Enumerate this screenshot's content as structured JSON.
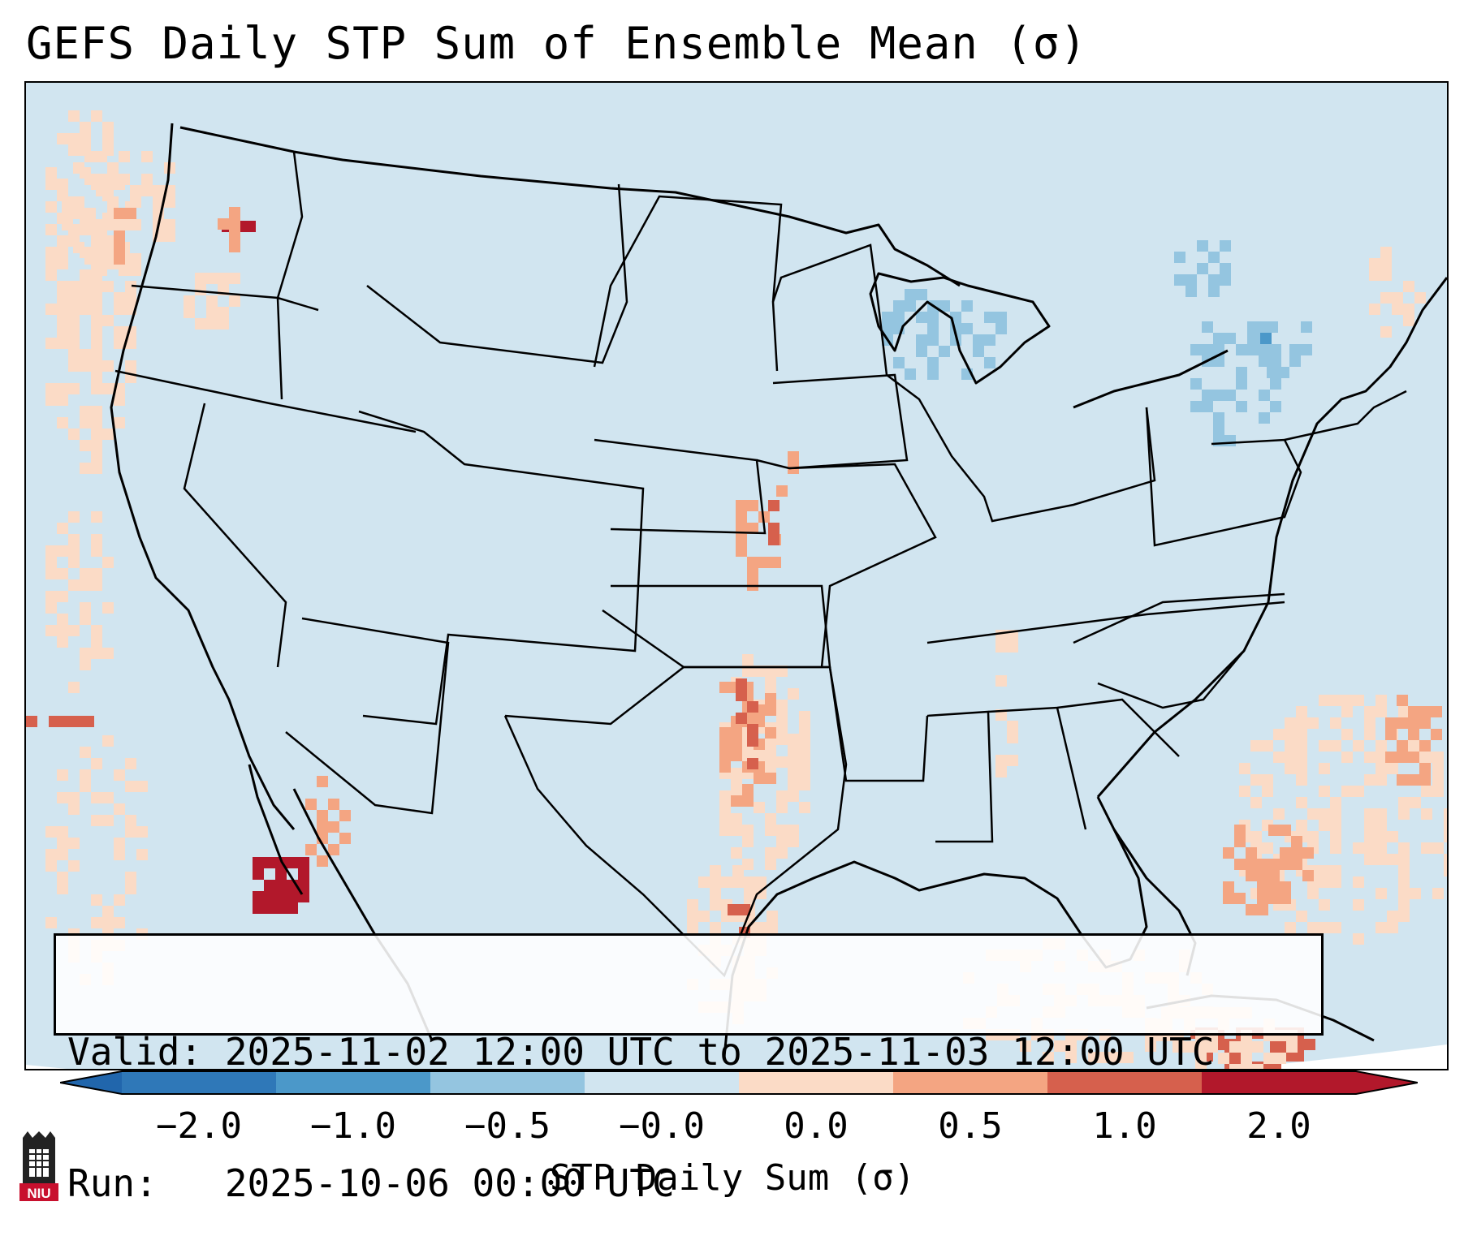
{
  "title": "GEFS Daily STP Sum of Ensemble Mean (σ)",
  "info": {
    "valid": "Valid: 2025-11-02 12:00 UTC to 2025-11-03 12:00 UTC",
    "run": "Run:   2025-10-06 00:00 UTC"
  },
  "colorbar": {
    "label": "STP Daily Sum (σ)",
    "ticks": [
      "−2.0",
      "−1.0",
      "−0.5",
      "−0.0",
      "0.0",
      "0.5",
      "1.0",
      "2.0"
    ],
    "colors": [
      "#2f78b8",
      "#4b98c9",
      "#94c5e0",
      "#d1e5f0",
      "#fbdbc6",
      "#f4a582",
      "#d6604d",
      "#b2182b"
    ],
    "under_color": "#2166ac",
    "over_color": "#b2182b"
  },
  "map": {
    "background_color": "#d1e5f0",
    "outline_color": "#000000"
  },
  "logo": {
    "text": "NIU"
  }
}
